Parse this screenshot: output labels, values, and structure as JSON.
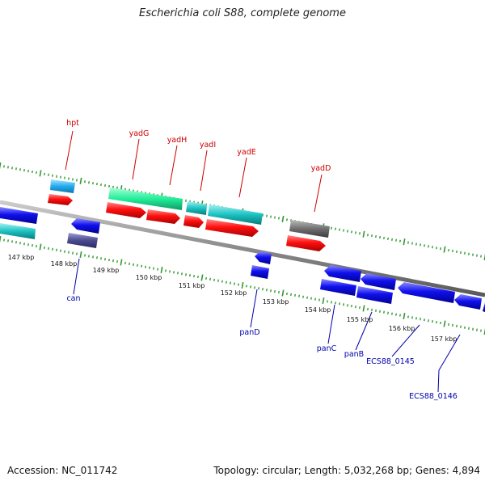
{
  "title": "Escherichia coli S88, complete genome",
  "footer": {
    "accession": "Accession: NC_011742",
    "summary": "Topology: circular; Length: 5,032,268 bp; Genes: 4,894"
  },
  "colors": {
    "background": "#ffffff",
    "backbone": "#888888",
    "tick": "#339933",
    "label_forward": "#cc0000",
    "label_reverse": "#0000aa"
  },
  "ruler": {
    "unit": "kbp",
    "labels": [
      "147 kbp",
      "148 kbp",
      "149 kbp",
      "150 kbp",
      "151 kbp",
      "152 kbp",
      "153 kbp",
      "154 kbp",
      "155 kbp",
      "156 kbp",
      "157 kbp"
    ]
  },
  "genes": [
    {
      "name": "hpt",
      "strand": "+",
      "color": "#ff0000"
    },
    {
      "name": "yadG",
      "strand": "+",
      "color": "#ff0000"
    },
    {
      "name": "yadH",
      "strand": "+",
      "color": "#ff0000"
    },
    {
      "name": "yadI",
      "strand": "+",
      "color": "#ff0000"
    },
    {
      "name": "yadE",
      "strand": "+",
      "color": "#ff0000"
    },
    {
      "name": "yadD",
      "strand": "+",
      "color": "#ff0000"
    },
    {
      "name": "can",
      "strand": "-",
      "color": "#0000ff"
    },
    {
      "name": "panD",
      "strand": "-",
      "color": "#0000ff"
    },
    {
      "name": "panC",
      "strand": "-",
      "color": "#0000ff"
    },
    {
      "name": "panB",
      "strand": "-",
      "color": "#0000ff"
    },
    {
      "name": "ECS88_0145",
      "strand": "-",
      "color": "#0000ff"
    },
    {
      "name": "ECS88_0146",
      "strand": "-",
      "color": "#0000ff"
    }
  ]
}
